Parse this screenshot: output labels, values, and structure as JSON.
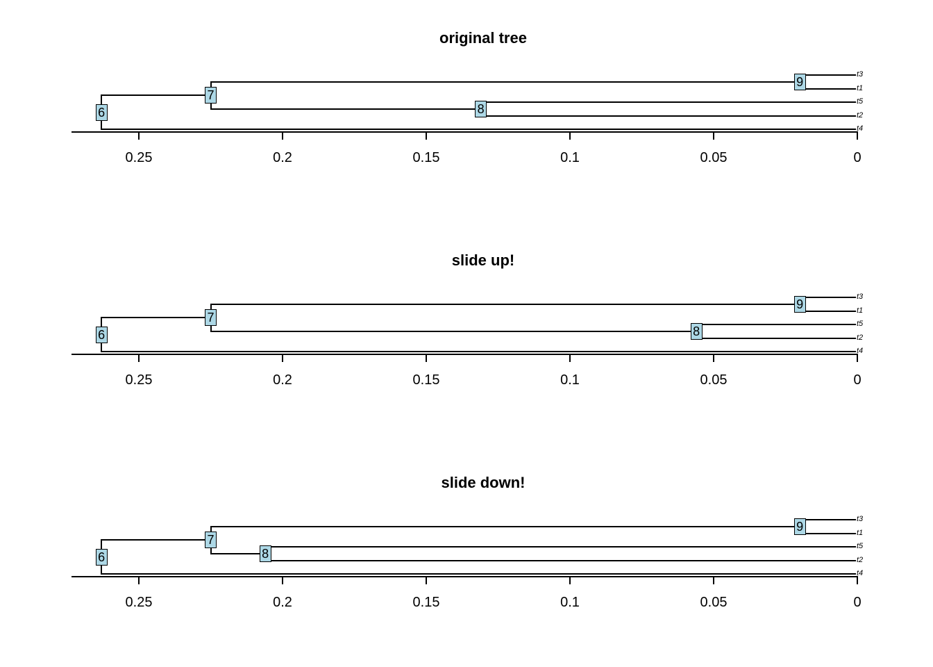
{
  "styles": {
    "background": "#ffffff",
    "line_color": "#000000",
    "text_color": "#000000",
    "node_box_fill": "#ADD8E6"
  },
  "chart_data": [
    {
      "type": "phylogram",
      "title": "original tree",
      "direction": "leftwards; time axis with 0 at right edge",
      "tips": [
        "t3",
        "t1",
        "t5",
        "t2",
        "t4"
      ],
      "tip_ages": {
        "t3": 0,
        "t1": 0,
        "t5": 0,
        "t2": 0,
        "t4": 0
      },
      "nodes": [
        {
          "id": "9",
          "age": 0.02,
          "children": [
            "t3",
            "t1"
          ]
        },
        {
          "id": "8",
          "age": 0.131,
          "children": [
            "t5",
            "t2"
          ]
        },
        {
          "id": "7",
          "age": 0.225,
          "children": [
            "9",
            "8"
          ]
        },
        {
          "id": "6",
          "age": 0.263,
          "children": [
            "7",
            "t4"
          ]
        }
      ],
      "newick": "(((t3,t1)9,(t5,t2)8)7,t4)6;",
      "axis": {
        "tick_values": [
          0.25,
          0.2,
          0.15,
          0.1,
          0.05,
          0
        ],
        "tick_labels": [
          "0.25",
          "0.2",
          "0.15",
          "0.1",
          "0.05",
          "0"
        ]
      }
    },
    {
      "type": "phylogram",
      "title": "slide up!",
      "direction": "leftwards; time axis with 0 at right edge",
      "tips": [
        "t3",
        "t1",
        "t5",
        "t2",
        "t4"
      ],
      "tip_ages": {
        "t3": 0,
        "t1": 0,
        "t5": 0,
        "t2": 0,
        "t4": 0
      },
      "nodes": [
        {
          "id": "9",
          "age": 0.02,
          "children": [
            "t3",
            "t1"
          ]
        },
        {
          "id": "8",
          "age": 0.056,
          "children": [
            "t5",
            "t2"
          ]
        },
        {
          "id": "7",
          "age": 0.225,
          "children": [
            "9",
            "8"
          ]
        },
        {
          "id": "6",
          "age": 0.263,
          "children": [
            "7",
            "t4"
          ]
        }
      ],
      "newick": "(((t3,t1)9,(t5,t2)8)7,t4)6;",
      "axis": {
        "tick_values": [
          0.25,
          0.2,
          0.15,
          0.1,
          0.05,
          0
        ],
        "tick_labels": [
          "0.25",
          "0.2",
          "0.15",
          "0.1",
          "0.05",
          "0"
        ]
      }
    },
    {
      "type": "phylogram",
      "title": "slide down!",
      "direction": "leftwards; time axis with 0 at right edge",
      "tips": [
        "t3",
        "t1",
        "t5",
        "t2",
        "t4"
      ],
      "tip_ages": {
        "t3": 0,
        "t1": 0,
        "t5": 0,
        "t2": 0,
        "t4": 0
      },
      "nodes": [
        {
          "id": "9",
          "age": 0.02,
          "children": [
            "t3",
            "t1"
          ]
        },
        {
          "id": "8",
          "age": 0.206,
          "children": [
            "t5",
            "t2"
          ]
        },
        {
          "id": "7",
          "age": 0.225,
          "children": [
            "9",
            "8"
          ]
        },
        {
          "id": "6",
          "age": 0.263,
          "children": [
            "7",
            "t4"
          ]
        }
      ],
      "newick": "(((t3,t1)9,(t5,t2)8)7,t4)6;",
      "axis": {
        "tick_values": [
          0.25,
          0.2,
          0.15,
          0.1,
          0.05,
          0
        ],
        "tick_labels": [
          "0.25",
          "0.2",
          "0.15",
          "0.1",
          "0.05",
          "0"
        ]
      }
    }
  ]
}
